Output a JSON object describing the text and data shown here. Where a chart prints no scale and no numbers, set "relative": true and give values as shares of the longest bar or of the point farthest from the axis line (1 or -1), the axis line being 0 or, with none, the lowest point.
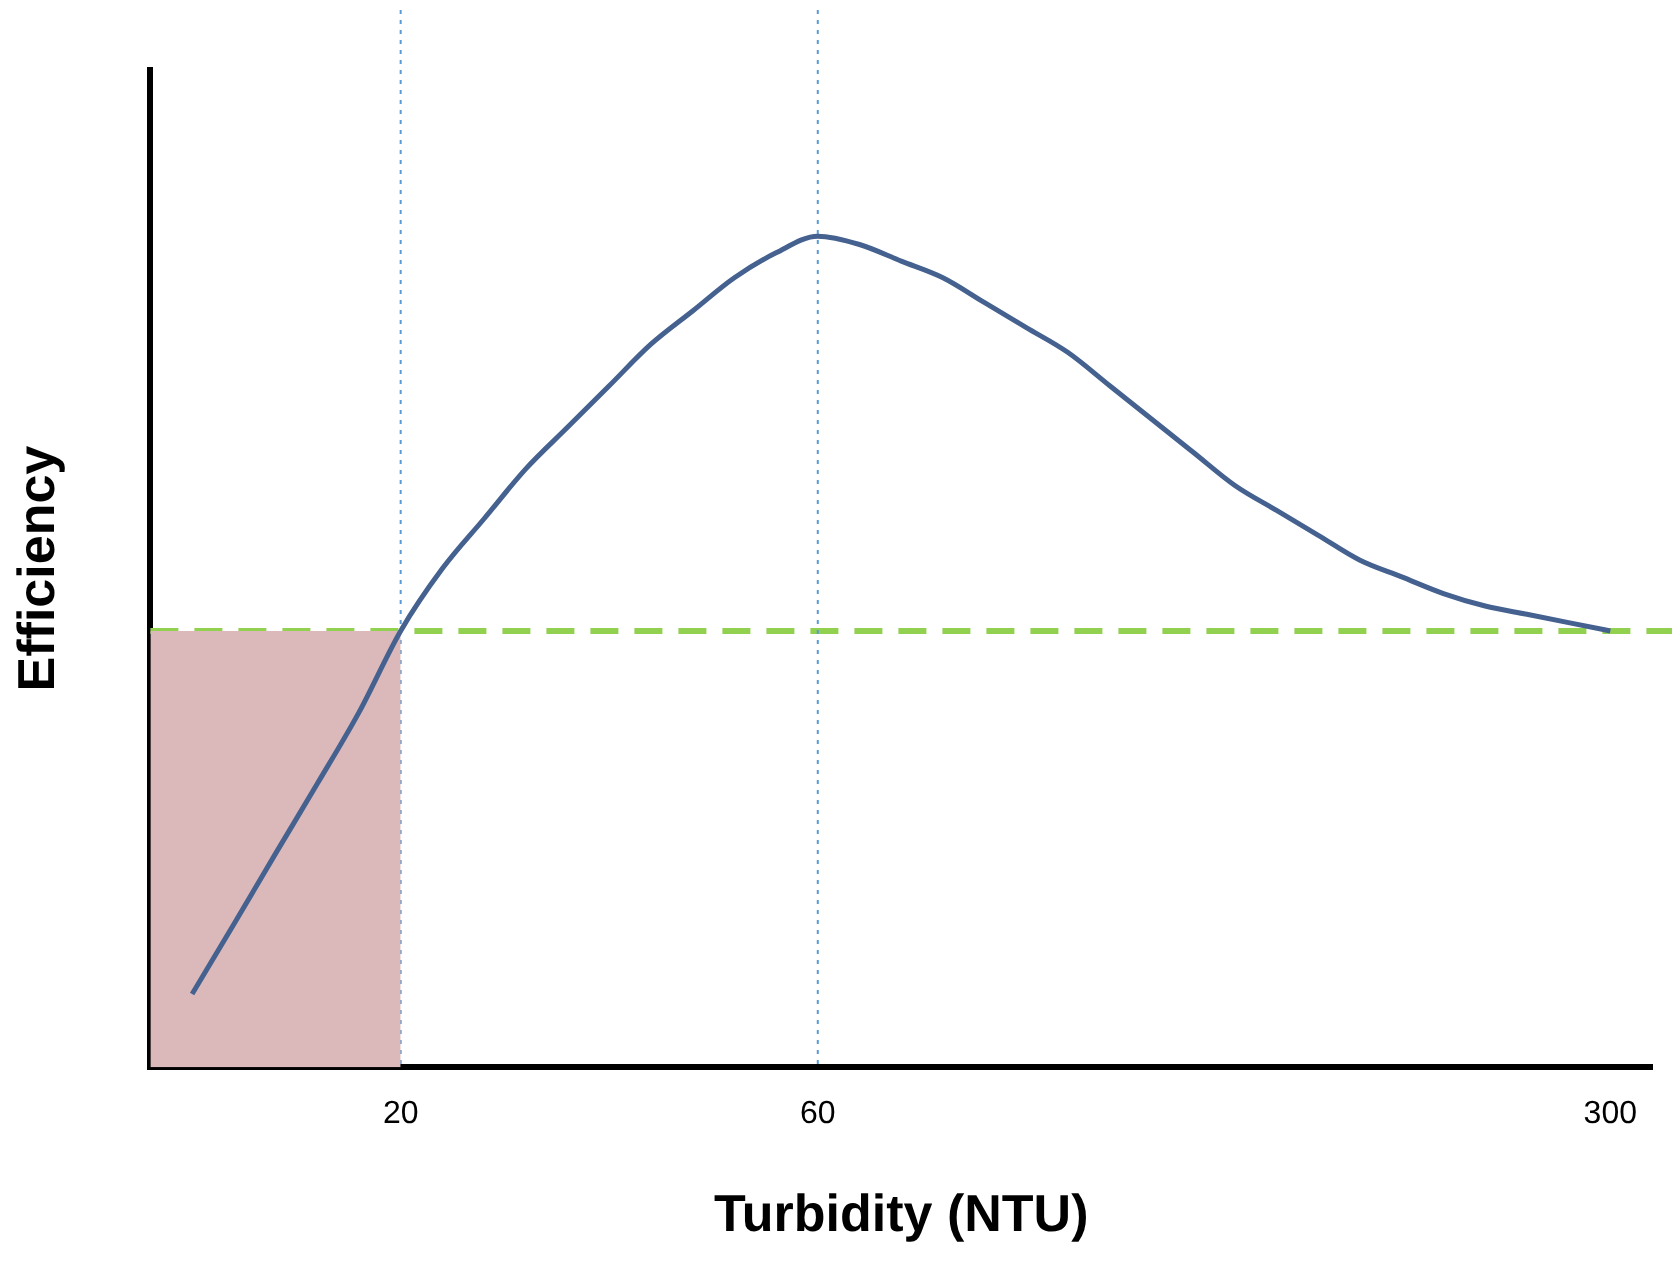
{
  "chart_data": {
    "type": "line",
    "xlabel": "Turbidity (NTU)",
    "ylabel": "Efficiency",
    "relative": true,
    "categories": [
      null,
      null,
      null,
      null,
      null,
      null,
      "20",
      null,
      null,
      null,
      null,
      null,
      null,
      null,
      null,
      null,
      "60",
      null,
      null,
      null,
      null,
      null,
      null,
      null,
      null,
      null,
      null,
      null,
      null,
      null,
      null,
      null,
      null,
      null,
      null,
      "300",
      null
    ],
    "series": [
      {
        "type": "area",
        "color": "#dbb8b9",
        "values": [
          0.525,
          0.525,
          0.525,
          0.525,
          0.525,
          0.525,
          0.525,
          null,
          null,
          null,
          null,
          null,
          null,
          null,
          null,
          null,
          null,
          null,
          null,
          null,
          null,
          null,
          null,
          null,
          null,
          null,
          null,
          null,
          null,
          null,
          null,
          null,
          null,
          null,
          null,
          null,
          null
        ]
      },
      {
        "color": "#44618f",
        "values": [
          null,
          0.088,
          0.172,
          0.257,
          0.341,
          0.427,
          0.525,
          0.6,
          0.66,
          0.72,
          0.77,
          0.82,
          0.87,
          0.91,
          0.95,
          0.98,
          1,
          0.99,
          0.97,
          0.95,
          0.92,
          0.89,
          0.86,
          0.82,
          0.78,
          0.74,
          0.7,
          0.67,
          0.64,
          0.61,
          0.59,
          0.57,
          0.555,
          0.545,
          0.535,
          0.525,
          null
        ]
      }
    ],
    "ref_lines": [
      {
        "axis": "y",
        "value": 0.525,
        "color": "#92d050",
        "line_style": "dashed"
      },
      {
        "axis": "x",
        "value": "20",
        "color": "#5b9bd5",
        "line_style": "dotted"
      },
      {
        "axis": "x",
        "value": "60",
        "color": "#5b9bd5",
        "line_style": "dotted"
      }
    ],
    "grid": false,
    "legend": false,
    "marker": "none",
    "line_style": "solid"
  }
}
